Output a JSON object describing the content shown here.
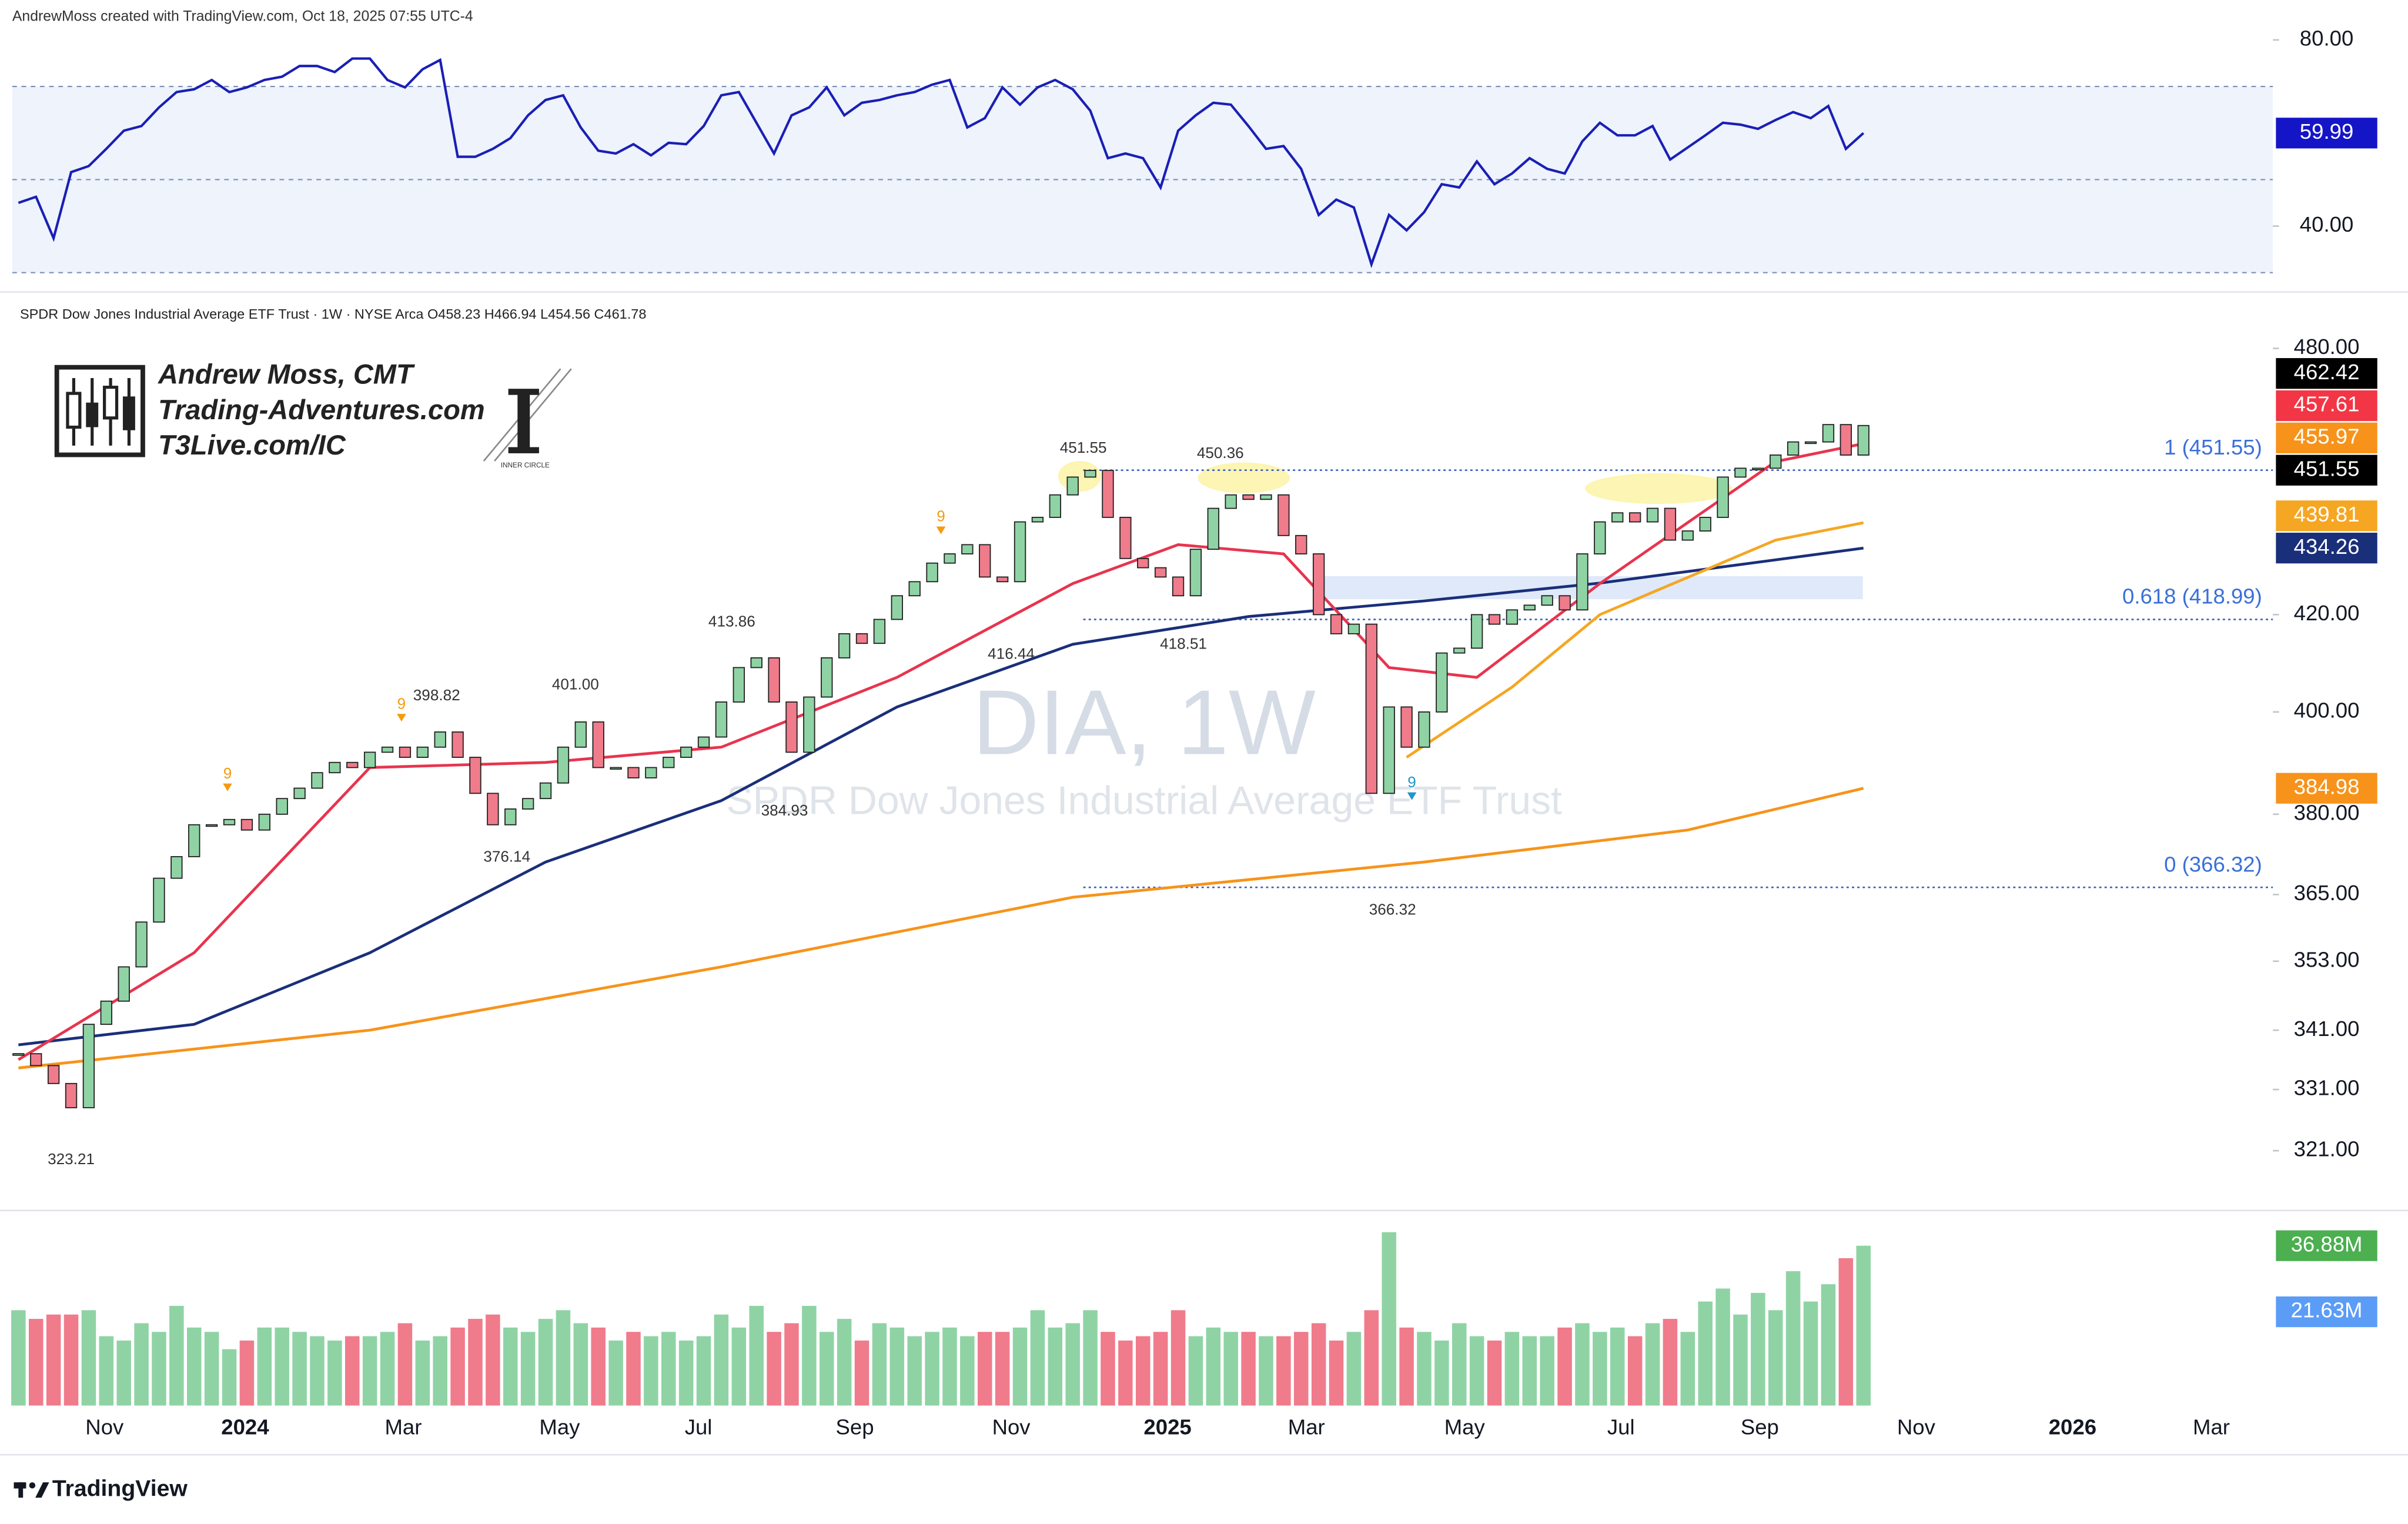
{
  "header": "AndrewMoss created with TradingView.com, Oct 18, 2025 07:55 UTC-4",
  "footer": "TradingView",
  "branding": {
    "name": "Andrew Moss, CMT",
    "site": "Trading-Adventures.com",
    "link": "T3Live.com/IC",
    "badge": "INNER CIRCLE"
  },
  "watermark": {
    "symbol": "DIA, 1W",
    "description": "SPDR Dow Jones Industrial Average ETF Trust"
  },
  "xaxis": {
    "xlim": [
      -0.35,
      128.3
    ],
    "xticks": [
      {
        "value": 4.9,
        "label": "Nov"
      },
      {
        "value": 12.9,
        "label": "2024"
      },
      {
        "value": 21.9,
        "label": "Mar"
      },
      {
        "value": 30.8,
        "label": "May"
      },
      {
        "value": 38.7,
        "label": "Jul"
      },
      {
        "value": 47.6,
        "label": "Sep"
      },
      {
        "value": 56.5,
        "label": "Nov"
      },
      {
        "value": 65.4,
        "label": "2025"
      },
      {
        "value": 73.3,
        "label": "Mar"
      },
      {
        "value": 82.3,
        "label": "May"
      },
      {
        "value": 91.2,
        "label": "Jul"
      },
      {
        "value": 99.1,
        "label": "Sep"
      },
      {
        "value": 108,
        "label": "Nov"
      },
      {
        "value": 116.9,
        "label": "2026"
      },
      {
        "value": 124.8,
        "label": "Mar"
      }
    ]
  },
  "chart_data": [
    {
      "type": "line",
      "color": "#1a1fb5",
      "ylim": [
        26.5,
        82.6
      ],
      "yticks": [
        {
          "value": 80,
          "label": "80.00"
        },
        {
          "value": 40,
          "label": "40.00"
        }
      ],
      "bands": [
        70,
        50,
        30
      ],
      "values": [
        45.0,
        46.3,
        37.4,
        51.6,
        52.9,
        56.6,
        60.5,
        61.5,
        65.5,
        68.8,
        69.4,
        71.4,
        68.8,
        69.8,
        71.4,
        72.1,
        74.4,
        74.4,
        73.1,
        76.0,
        76.0,
        71.4,
        69.8,
        73.7,
        75.7,
        54.9,
        54.9,
        56.6,
        58.9,
        63.8,
        67.1,
        68.1,
        61.2,
        56.2,
        55.6,
        57.6,
        55.2,
        57.9,
        57.6,
        61.5,
        68.1,
        68.8,
        62.2,
        55.6,
        63.8,
        65.5,
        69.8,
        63.8,
        66.5,
        67.1,
        68.1,
        68.8,
        70.4,
        71.4,
        61.2,
        63.2,
        69.8,
        66.1,
        69.8,
        71.4,
        69.4,
        64.8,
        54.6,
        55.6,
        54.6,
        48.3,
        60.5,
        63.8,
        66.5,
        66.1,
        61.5,
        56.6,
        57.2,
        52.3,
        42.4,
        45.7,
        44.0,
        31.8,
        42.4,
        39.1,
        43.0,
        49.0,
        48.3,
        53.9,
        49.0,
        51.3,
        54.6,
        52.3,
        51.3,
        58.2,
        62.2,
        59.5,
        59.5,
        61.5,
        54.3,
        56.9,
        59.5,
        62.2,
        61.8,
        60.9,
        62.8,
        64.5,
        63.2,
        65.8,
        56.6,
        59.99
      ],
      "price_labels": [
        {
          "value": 59.99,
          "label": "59.99",
          "color": "#1515c8"
        }
      ]
    },
    {
      "type": "candlestick",
      "title": "SPDR Dow Jones Industrial Average ETF Trust · 1W · NYSE Arca  O458.23  H466.94  L454.56  C461.78",
      "ylim": [
        312,
        493
      ],
      "log_scale": true,
      "yticks": [
        {
          "value": 480,
          "label": "480.00"
        },
        {
          "value": 420,
          "label": "420.00"
        },
        {
          "value": 400,
          "label": "400.00"
        },
        {
          "value": 380,
          "label": "380.00"
        },
        {
          "value": 365,
          "label": "365.00"
        },
        {
          "value": 353,
          "label": "353.00"
        },
        {
          "value": 341,
          "label": "341.00"
        },
        {
          "value": 331,
          "label": "331.00"
        },
        {
          "value": 321,
          "label": "321.00"
        }
      ],
      "colors": {
        "up": "#8fd3a5",
        "down": "#f07b8b"
      },
      "closes": [
        337,
        335,
        332,
        328,
        342,
        346,
        352,
        360,
        368,
        372,
        378,
        378,
        379,
        377,
        380,
        383,
        385,
        388,
        390,
        389,
        392,
        393,
        391,
        393,
        396,
        391,
        384,
        378,
        381,
        383,
        386,
        393,
        398,
        389,
        389,
        387,
        389,
        391,
        393,
        395,
        402,
        409,
        411,
        402,
        392,
        403,
        411,
        416,
        414,
        419,
        424,
        427,
        431,
        433,
        435,
        428,
        427,
        440,
        441,
        446,
        450,
        451.5,
        441,
        432,
        430,
        428,
        424,
        434,
        443,
        446,
        445,
        446,
        437,
        433,
        420,
        416,
        418,
        384,
        401,
        393,
        400,
        412,
        413,
        420,
        418,
        421,
        422,
        424,
        421,
        433,
        440,
        442,
        440,
        443,
        436,
        438,
        441,
        450,
        452,
        452,
        455,
        458,
        458,
        462,
        455,
        461.78
      ],
      "lines": [
        {
          "color": "#f7931a",
          "x": [
            0,
            20,
            40,
            60,
            80,
            95,
            105
          ],
          "values": [
            334.6,
            341,
            352,
            364.5,
            371,
            377,
            384.98
          ]
        },
        {
          "color": "#1a2f7a",
          "x": [
            0,
            10,
            20,
            30,
            40,
            50,
            60,
            70,
            80,
            90,
            100,
            105
          ],
          "values": [
            338.5,
            342,
            354.5,
            371,
            382.6,
            401,
            413.8,
            419.6,
            422.9,
            426.7,
            431.7,
            434.26
          ]
        },
        {
          "color": "#f5a623",
          "x": [
            79,
            85,
            90,
            100,
            105
          ],
          "values": [
            391,
            405,
            420,
            436,
            439.81
          ]
        },
        {
          "color": "#e8344e",
          "x": [
            0,
            10,
            20,
            30,
            40,
            50,
            60,
            66,
            72,
            78,
            83,
            90,
            100,
            105
          ],
          "values": [
            336,
            354.5,
            389,
            390,
            393,
            407,
            426.6,
            435,
            433,
            409,
            407,
            426.6,
            453.5,
            457.61
          ]
        }
      ],
      "levels": [
        {
          "value": 451.55,
          "label": "1 (451.55)",
          "from": 60.6
        },
        {
          "value": 418.99,
          "label": "0.618 (418.99)",
          "from": 60.6
        },
        {
          "value": 366.32,
          "label": "0 (366.32)",
          "from": 60.6
        }
      ],
      "annotations": [
        {
          "value": 451.55,
          "label": "451.55",
          "x": 60.6,
          "side": "above"
        },
        {
          "value": 450.36,
          "label": "450.36",
          "x": 68.4,
          "side": "above"
        },
        {
          "value": 413.86,
          "label": "413.86",
          "x": 40.6,
          "side": "above"
        },
        {
          "value": 398.82,
          "label": "398.82",
          "x": 23.8,
          "side": "above"
        },
        {
          "value": 401,
          "label": "401.00",
          "x": 31.7,
          "side": "above"
        },
        {
          "value": 416.44,
          "label": "416.44",
          "x": 56.5,
          "side": "below"
        },
        {
          "value": 418.51,
          "label": "418.51",
          "x": 66.3,
          "side": "below"
        },
        {
          "value": 376.14,
          "label": "376.14",
          "x": 27.8,
          "side": "below"
        },
        {
          "value": 384.93,
          "label": "384.93",
          "x": 43.6,
          "side": "below"
        },
        {
          "value": 366.32,
          "label": "366.32",
          "x": 78.2,
          "side": "below"
        },
        {
          "value": 323.21,
          "label": "323.21",
          "x": 3,
          "side": "below"
        }
      ],
      "td_marks": [
        {
          "text": "9",
          "x": 11.9,
          "price": 385.3,
          "color": "#f39c12"
        },
        {
          "text": "9",
          "x": 21.8,
          "price": 399,
          "color": "#f39c12"
        },
        {
          "text": "9",
          "x": 52.5,
          "price": 438.3,
          "color": "#f39c12"
        },
        {
          "text": "9",
          "x": 79.3,
          "price": 383.6,
          "color": "#2196c9"
        }
      ],
      "price_labels": [
        {
          "value": 462.42,
          "label": "462.42",
          "color": "#000000"
        },
        {
          "value": 457.61,
          "label": "457.61",
          "color": "#f23645"
        },
        {
          "value": 455.97,
          "label": "455.97",
          "color": "#f7931a"
        },
        {
          "value": 451.55,
          "label": "451.55",
          "color": "#000000"
        },
        {
          "value": 439.81,
          "label": "439.81",
          "color": "#f5a623"
        },
        {
          "value": 434.26,
          "label": "434.26",
          "color": "#1a2f7a"
        },
        {
          "value": 384.98,
          "label": "384.98",
          "color": "#f7931a"
        }
      ]
    },
    {
      "type": "bar",
      "ylim": [
        0,
        44.3
      ],
      "colors": {
        "up": "#8fd3a5",
        "down": "#f07b8b"
      },
      "values": [
        22,
        20,
        21,
        21,
        22,
        16,
        15,
        19,
        17,
        23,
        18,
        17,
        13,
        15,
        18,
        18,
        17,
        16,
        15,
        16,
        16,
        17,
        19,
        15,
        16,
        18,
        20,
        21,
        18,
        17,
        20,
        22,
        19,
        18,
        15,
        17,
        16,
        17,
        15,
        16,
        21,
        18,
        23,
        17,
        19,
        23,
        17,
        20,
        15,
        19,
        18,
        16,
        17,
        18,
        16,
        17,
        17,
        18,
        22,
        18,
        19,
        22,
        17,
        15,
        16,
        17,
        22,
        16,
        18,
        17,
        17,
        16,
        16,
        17,
        19,
        15,
        17,
        22,
        40,
        18,
        17,
        15,
        19,
        16,
        15,
        17,
        16,
        16,
        18,
        19,
        17,
        18,
        16,
        19,
        20,
        17,
        24,
        27,
        21,
        26,
        22,
        31,
        24,
        28,
        34,
        36.88
      ],
      "price_labels": [
        {
          "value": 36.88,
          "label": "36.88M",
          "color": "#4caf50"
        },
        {
          "value": 21.63,
          "label": "21.63M",
          "color": "#5b9cf6"
        }
      ]
    }
  ]
}
